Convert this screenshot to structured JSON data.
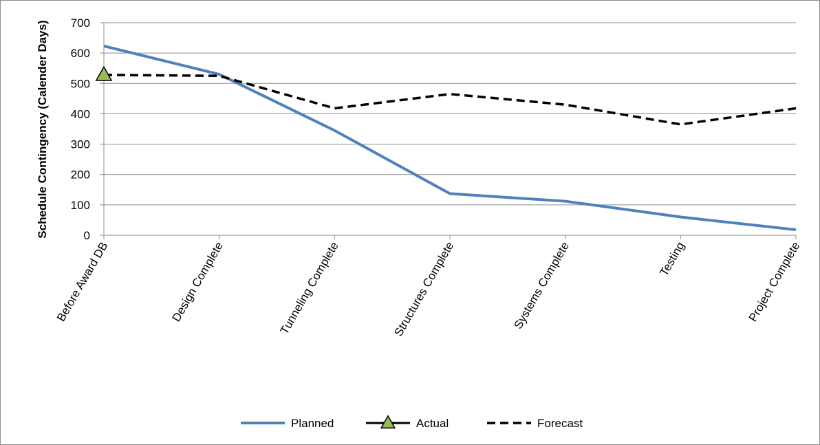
{
  "chart_data": {
    "type": "line",
    "title": "",
    "xlabel": "",
    "ylabel": "Schedule Contingency  (Calender Days)",
    "ylim": [
      0,
      700
    ],
    "yticks": [
      0,
      100,
      200,
      300,
      400,
      500,
      600,
      700
    ],
    "grid": true,
    "legend_position": "bottom",
    "categories": [
      "Before Award DB",
      "Design Complete",
      "Tunneling Complete",
      "Structures Complete",
      "Systems Complete",
      "Testing",
      "Project Complete"
    ],
    "series": [
      {
        "name": "Planned",
        "values": [
          623,
          530,
          345,
          137,
          112,
          60,
          18
        ],
        "color": "#4f81bd",
        "style": "solid"
      },
      {
        "name": "Actual",
        "values": [
          528,
          null,
          null,
          null,
          null,
          null,
          null
        ],
        "color": "#000000",
        "marker": "triangle",
        "marker_fill": "#9bbb59",
        "style": "solid"
      },
      {
        "name": "Forecast",
        "values": [
          528,
          525,
          418,
          465,
          430,
          365,
          418
        ],
        "color": "#000000",
        "style": "dashed"
      }
    ]
  }
}
